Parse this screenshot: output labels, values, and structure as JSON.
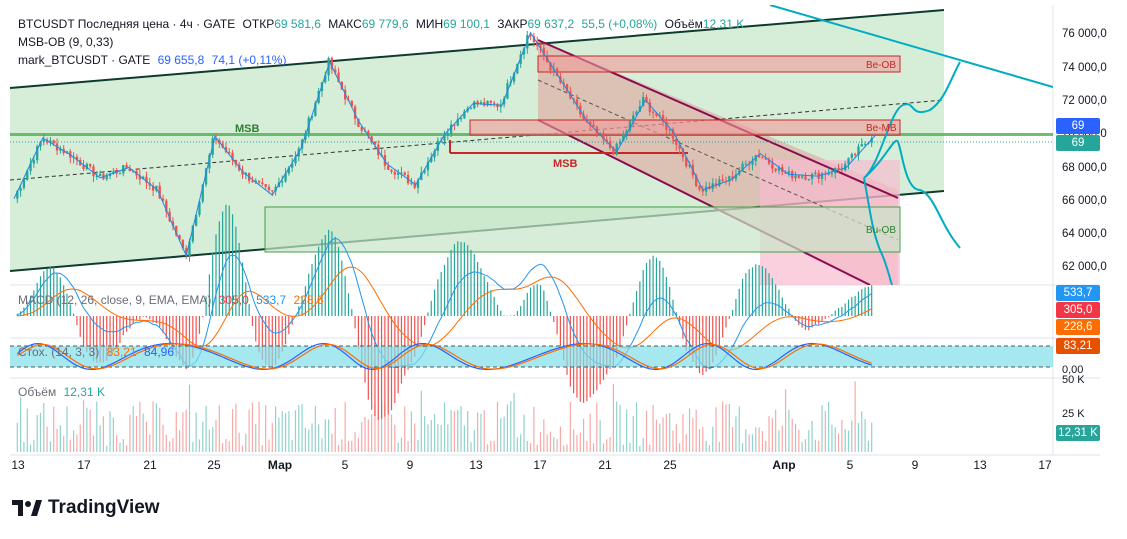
{
  "header": {
    "symbol_line": "BTCUSDT Последняя цена · 4ч · GATE",
    "open_label": "ОТКР",
    "open_value": "69 581,6",
    "high_label": "МАКС",
    "high_value": "69 779,6",
    "low_label": "МИН",
    "low_value": "69 100,1",
    "close_label": "ЗАКР",
    "close_value": "69 637,2",
    "change": "55,5 (+0,08%)",
    "volume_label": "Объём",
    "volume_value": "12,31 K",
    "indicator1": "MSB-OB (9, 0,33)",
    "indicator2_name": "mark_BTCUSDT · GATE",
    "indicator2_value": "69 655,8",
    "indicator2_change": "74,1 (+0,11%)"
  },
  "annotations": {
    "msb_left": "MSB",
    "msb_mid": "MSB",
    "be_ob_top": "Be-OB",
    "be_mb": "Be-MB",
    "bu_ob": "Bu-OB"
  },
  "price_axis": {
    "ticks": [
      "76 000,0",
      "74 000,0",
      "72 000,0",
      "70 000,0",
      "68 000,0",
      "66 000,0",
      "64 000,0",
      "62 000,0"
    ],
    "badge_mark": "69 655,8",
    "badge_last": "69 637,2"
  },
  "macd": {
    "label": "MACD (12, 26, close, 9, EMA, EMA)",
    "v1": "305,0",
    "v2": "533,7",
    "v3": "228,6",
    "badge_1": "533,7",
    "badge_2": "305,0",
    "badge_3": "228,6"
  },
  "stoch": {
    "label": "Стох. (14, 3, 3)",
    "v1": "83,21",
    "v2": "84,96",
    "badge": "83,21",
    "axis_zero": "0,00"
  },
  "volume": {
    "label": "Объём",
    "value": "12,31 K",
    "axis_50": "50 K",
    "axis_25": "25 K",
    "badge": "12,31 K"
  },
  "date_axis": [
    "13",
    "17",
    "21",
    "25",
    "Мар",
    "5",
    "9",
    "13",
    "17",
    "21",
    "25",
    "Апр",
    "5",
    "9",
    "13",
    "17"
  ],
  "brand": "TradingView",
  "colors": {
    "up": "#26a69a",
    "down": "#ef5350",
    "channel_fill": "#2e7d32",
    "desc_channel": "#880e4f",
    "cyan": "#00bcd4",
    "badge_blue": "#2962ff",
    "badge_green": "#26a69a",
    "badge_red": "#f23645",
    "badge_orange": "#ff6d00",
    "badge_macd_blue": "#2196f3",
    "badge_stoch": "#e65100"
  },
  "chart_data": {
    "type": "candlestick",
    "timeframe": "4h",
    "ylim": [
      61000,
      77200
    ],
    "x_tick_labels": [
      "13",
      "17",
      "21",
      "25",
      "Мар",
      "5",
      "9",
      "13",
      "17",
      "21",
      "25",
      "Апр",
      "5",
      "9",
      "13",
      "17"
    ],
    "close_path": [
      {
        "date": "13",
        "price": 66000
      },
      {
        "date": "15",
        "price": 69500
      },
      {
        "date": "17",
        "price": 68500
      },
      {
        "date": "19",
        "price": 67200
      },
      {
        "date": "21",
        "price": 67800
      },
      {
        "date": "23",
        "price": 66500
      },
      {
        "date": "24",
        "price": 62700
      },
      {
        "date": "25",
        "price": 69600
      },
      {
        "date": "27",
        "price": 67500
      },
      {
        "date": "Мар",
        "price": 66200
      },
      {
        "date": "3",
        "price": 68900
      },
      {
        "date": "4",
        "price": 73900
      },
      {
        "date": "5",
        "price": 70500
      },
      {
        "date": "7",
        "price": 68000
      },
      {
        "date": "9",
        "price": 66800
      },
      {
        "date": "11",
        "price": 69700
      },
      {
        "date": "13",
        "price": 71500
      },
      {
        "date": "15",
        "price": 71400
      },
      {
        "date": "17",
        "price": 75600
      },
      {
        "date": "18",
        "price": 73000
      },
      {
        "date": "20",
        "price": 70400
      },
      {
        "date": "22",
        "price": 68700
      },
      {
        "date": "24",
        "price": 71700
      },
      {
        "date": "26",
        "price": 69800
      },
      {
        "date": "28",
        "price": 66500
      },
      {
        "date": "Апр",
        "price": 67100
      },
      {
        "date": "2",
        "price": 68600
      },
      {
        "date": "3",
        "price": 67400
      },
      {
        "date": "5",
        "price": 67300
      },
      {
        "date": "6",
        "price": 67800
      },
      {
        "date": "7",
        "price": 69637.2
      }
    ],
    "last_price": 69637.2,
    "mark_price": 69655.8,
    "macd_series": [
      {
        "name": "MACD",
        "value": 533.7
      },
      {
        "name": "Signal",
        "value": 228.6
      },
      {
        "name": "Histogram",
        "value": 305.0
      }
    ],
    "stoch_series": [
      {
        "name": "%K",
        "value": 83.21
      },
      {
        "name": "%D",
        "value": 84.96
      }
    ],
    "volume_last": "12,31 K"
  }
}
